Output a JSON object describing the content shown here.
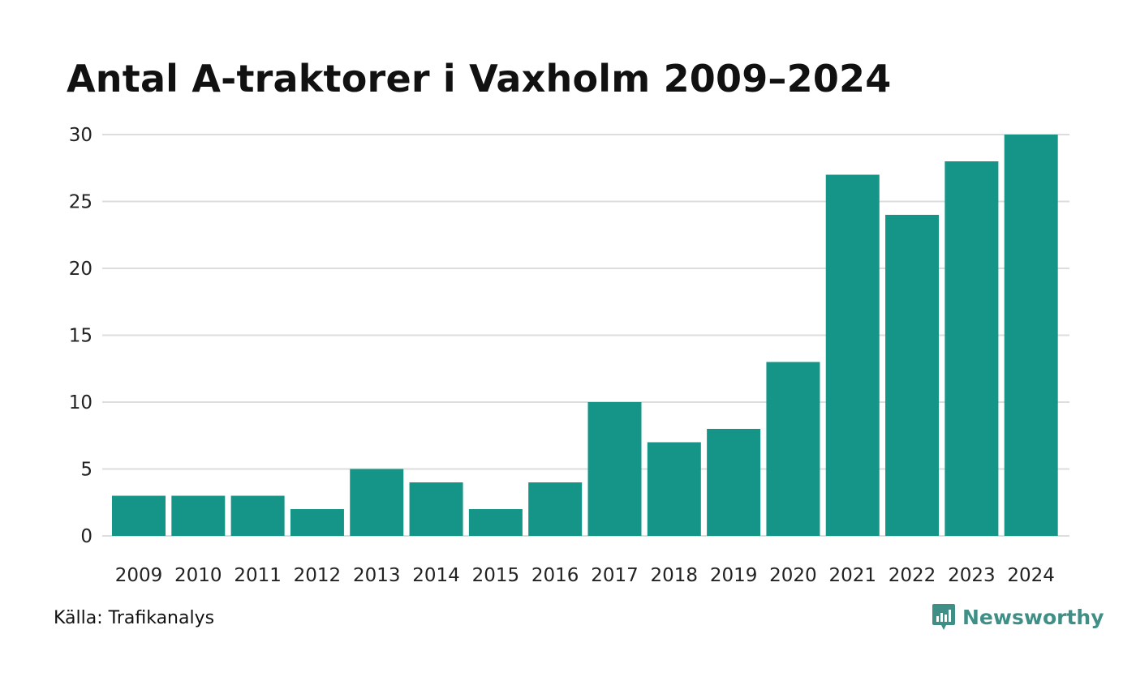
{
  "title": "Antal A-traktorer i Vaxholm 2009–2024",
  "source": "Källa: Trafikanalys",
  "brand": {
    "name": "Newsworthy",
    "icon": "newsworthy-logo-icon",
    "color": "#3f8f86"
  },
  "colors": {
    "bar": "#159588",
    "grid": "#dddddd"
  },
  "chart_data": {
    "type": "bar",
    "title": "Antal A-traktorer i Vaxholm 2009–2024",
    "xlabel": "",
    "ylabel": "",
    "categories": [
      "2009",
      "2010",
      "2011",
      "2012",
      "2013",
      "2014",
      "2015",
      "2016",
      "2017",
      "2018",
      "2019",
      "2020",
      "2021",
      "2022",
      "2023",
      "2024"
    ],
    "values": [
      3,
      3,
      3,
      2,
      5,
      4,
      2,
      4,
      10,
      7,
      8,
      13,
      27,
      24,
      28,
      30
    ],
    "ylim": [
      0,
      30
    ],
    "yticks": [
      0,
      5,
      10,
      15,
      20,
      25,
      30
    ],
    "grid": true,
    "legend": "none"
  }
}
